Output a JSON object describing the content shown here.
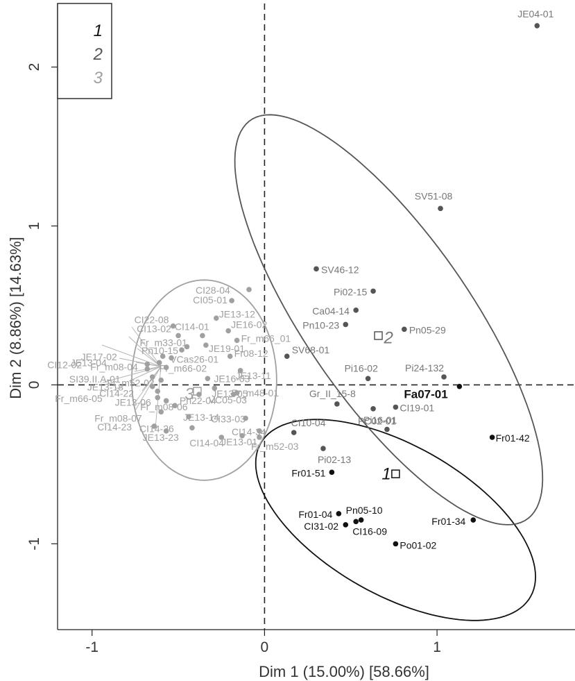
{
  "chart_data": {
    "type": "scatter",
    "xlabel": "Dim 1 (15.00%) [58.66%]",
    "ylabel": "Dim 2 (8.86%) [14.63%]",
    "xlim": [
      -1.2,
      1.8
    ],
    "ylim": [
      -1.54,
      2.4
    ],
    "x_ticks": [
      -1,
      0,
      1
    ],
    "y_ticks": [
      -1,
      0,
      1,
      2
    ],
    "reference_lines": {
      "x": 0,
      "y": 0,
      "style": "dashed"
    },
    "legend": {
      "placement": "top-left",
      "entries": [
        {
          "label": "1",
          "color": "#111111"
        },
        {
          "label": "2",
          "color": "#555555"
        },
        {
          "label": "3",
          "color": "#a0a0a0"
        }
      ]
    },
    "groups": [
      {
        "label": "1",
        "color": "#111111",
        "label_color": "#111111",
        "centroid": [
          0.76,
          -0.56
        ],
        "ellipse": {
          "cx": 0.76,
          "cy": -0.85,
          "rx": 0.92,
          "ry": 0.46,
          "angle_deg": -33
        }
      },
      {
        "label": "2",
        "color": "#555555",
        "label_color": "#777777",
        "centroid": [
          0.66,
          0.31
        ],
        "ellipse": {
          "cx": 0.72,
          "cy": 0.41,
          "rx": 1.49,
          "ry": 0.49,
          "angle_deg": -58
        }
      },
      {
        "label": "3",
        "color": "#a0a0a0",
        "label_color": "#a0a0a0",
        "centroid": [
          -0.39,
          -0.04
        ],
        "ellipse": {
          "cx": -0.35,
          "cy": 0.03,
          "rx": 0.42,
          "ry": 0.63,
          "angle_deg": 0
        }
      }
    ],
    "points": [
      {
        "label": "Fa07-01",
        "x": 1.13,
        "y": -0.01,
        "group": "1",
        "emphasis": true
      },
      {
        "label": "Fr01-42",
        "x": 1.32,
        "y": -0.33,
        "group": "1"
      },
      {
        "label": "Fr01-51",
        "x": 0.39,
        "y": -0.55,
        "group": "1"
      },
      {
        "label": "Fr01-04",
        "x": 0.43,
        "y": -0.81,
        "group": "1"
      },
      {
        "label": "Pn05-10",
        "x": 0.56,
        "y": -0.85,
        "group": "1"
      },
      {
        "label": "CI31-02",
        "x": 0.47,
        "y": -0.88,
        "group": "1"
      },
      {
        "label": "CI16-09",
        "x": 0.53,
        "y": -0.86,
        "group": "1"
      },
      {
        "label": "Fr01-34",
        "x": 1.21,
        "y": -0.85,
        "group": "1"
      },
      {
        "label": "Po01-02",
        "x": 0.76,
        "y": -1.0,
        "group": "1"
      },
      {
        "label": "JE04-01",
        "x": 1.58,
        "y": 2.26,
        "group": "2"
      },
      {
        "label": "SV51-08",
        "x": 1.02,
        "y": 1.11,
        "group": "2"
      },
      {
        "label": "SV46-12",
        "x": 0.3,
        "y": 0.73,
        "group": "2"
      },
      {
        "label": "Pi02-15",
        "x": 0.63,
        "y": 0.59,
        "group": "2"
      },
      {
        "label": "Ca04-14",
        "x": 0.53,
        "y": 0.47,
        "group": "2"
      },
      {
        "label": "Pn10-23",
        "x": 0.47,
        "y": 0.38,
        "group": "2"
      },
      {
        "label": "Pn05-29",
        "x": 0.81,
        "y": 0.35,
        "group": "2"
      },
      {
        "label": "SV68-01",
        "x": 0.13,
        "y": 0.18,
        "group": "2"
      },
      {
        "label": "Pi16-02",
        "x": 0.6,
        "y": 0.04,
        "group": "2"
      },
      {
        "label": "Pi24-132",
        "x": 1.04,
        "y": 0.05,
        "group": "2"
      },
      {
        "label": "Gr_II_15-8",
        "x": 0.42,
        "y": -0.12,
        "group": "2"
      },
      {
        "label": "Pi16-01",
        "x": 0.63,
        "y": -0.15,
        "group": "2"
      },
      {
        "label": "CI19-01",
        "x": 0.76,
        "y": -0.14,
        "group": "2"
      },
      {
        "label": "PC02-01",
        "x": 0.71,
        "y": -0.28,
        "group": "2"
      },
      {
        "label": "CI10-04",
        "x": 0.17,
        "y": -0.3,
        "group": "2"
      },
      {
        "label": "Pi02-13",
        "x": 0.34,
        "y": -0.4,
        "group": "2"
      },
      {
        "label": "CI28-04",
        "x": -0.09,
        "y": 0.6,
        "group": "3"
      },
      {
        "label": "CI05-01",
        "x": -0.19,
        "y": 0.53,
        "group": "3"
      },
      {
        "label": "CI22-08",
        "x": -0.53,
        "y": 0.37,
        "group": "3"
      },
      {
        "label": "CI13-02",
        "x": -0.5,
        "y": 0.31,
        "group": "3"
      },
      {
        "label": "CI14-01",
        "x": -0.36,
        "y": 0.31,
        "group": "3"
      },
      {
        "label": "JE13-12",
        "x": -0.28,
        "y": 0.42,
        "group": "3"
      },
      {
        "label": "JE16-02",
        "x": -0.21,
        "y": 0.34,
        "group": "3"
      },
      {
        "label": "Fr_m33-01",
        "x": -0.45,
        "y": 0.24,
        "group": "3"
      },
      {
        "label": "Pn10-15",
        "x": -0.48,
        "y": 0.22,
        "group": "3"
      },
      {
        "label": "JE19-01",
        "x": -0.34,
        "y": 0.25,
        "group": "3"
      },
      {
        "label": "Fr_m66_01",
        "x": -0.16,
        "y": 0.28,
        "group": "3"
      },
      {
        "label": "JE17-02",
        "x": -0.59,
        "y": 0.18,
        "group": "3"
      },
      {
        "label": "VCas26-01",
        "x": -0.54,
        "y": 0.17,
        "group": "3"
      },
      {
        "label": "JE13-04",
        "x": -0.61,
        "y": 0.14,
        "group": "3"
      },
      {
        "label": "Fr_m66-02",
        "x": -0.57,
        "y": 0.11,
        "group": "3"
      },
      {
        "label": "Fr08-12",
        "x": -0.2,
        "y": 0.18,
        "group": "3"
      },
      {
        "label": "CI12-02",
        "x": -0.68,
        "y": 0.13,
        "group": "3"
      },
      {
        "label": "JE13-11",
        "x": -0.14,
        "y": 0.09,
        "group": "3"
      },
      {
        "label": "Fr_m08-04",
        "x": -0.68,
        "y": 0.1,
        "group": "3"
      },
      {
        "label": "SI39.II.A-01",
        "x": -0.65,
        "y": 0.05,
        "group": "3"
      },
      {
        "label": "Fr_m52-02",
        "x": -0.6,
        "y": 0.03,
        "group": "3"
      },
      {
        "label": "JE16-03",
        "x": -0.33,
        "y": 0.04,
        "group": "3"
      },
      {
        "label": "JE13-18",
        "x": -0.65,
        "y": -0.01,
        "group": "3"
      },
      {
        "label": "JE13-05",
        "x": -0.29,
        "y": -0.02,
        "group": "3"
      },
      {
        "label": "CI14-22",
        "x": -0.62,
        "y": -0.04,
        "group": "3"
      },
      {
        "label": "Fr_m48-01",
        "x": -0.16,
        "y": -0.05,
        "group": "3"
      },
      {
        "label": "Fr_m66-05",
        "x": -0.62,
        "y": -0.08,
        "group": "3"
      },
      {
        "label": "Pn22-04",
        "x": -0.38,
        "y": -0.06,
        "group": "3"
      },
      {
        "label": "VC05-03",
        "x": -0.18,
        "y": -0.06,
        "group": "3"
      },
      {
        "label": "JE13-06",
        "x": -0.57,
        "y": -0.1,
        "group": "3"
      },
      {
        "label": "Fr_m08-06",
        "x": -0.52,
        "y": -0.13,
        "group": "3"
      },
      {
        "label": "Fr_m08-07",
        "x": -0.6,
        "y": -0.17,
        "group": "3"
      },
      {
        "label": "JE13-14",
        "x": -0.44,
        "y": -0.2,
        "group": "3"
      },
      {
        "label": "CI33-03",
        "x": -0.11,
        "y": -0.21,
        "group": "3"
      },
      {
        "label": "CI14-23",
        "x": -0.64,
        "y": -0.26,
        "group": "3"
      },
      {
        "label": "CI14-26",
        "x": -0.42,
        "y": -0.27,
        "group": "3"
      },
      {
        "label": "CI14-34",
        "x": -0.03,
        "y": -0.29,
        "group": "3"
      },
      {
        "label": "CI14-04",
        "x": -0.25,
        "y": -0.33,
        "group": "3"
      },
      {
        "label": "JE13-01",
        "x": -0.13,
        "y": -0.32,
        "group": "3"
      },
      {
        "label": "Fr_m52-03",
        "x": -0.03,
        "y": -0.33,
        "group": "3"
      },
      {
        "label": "JE13-23",
        "x": -0.57,
        "y": -0.29,
        "group": "3"
      }
    ]
  }
}
